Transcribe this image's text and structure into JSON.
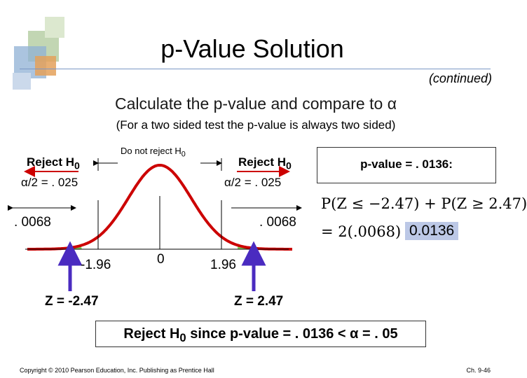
{
  "slide": {
    "title": "p-Value Solution",
    "continued": "(continued)",
    "subtitle_text": "Calculate the p-value and compare to ",
    "subtitle_alpha": "α",
    "note": "(For a two sided test the p-value is always two sided)"
  },
  "diagram": {
    "reject_label": "Reject H",
    "reject_sub": "0",
    "do_not_reject_label": "Do not reject H",
    "do_not_reject_sub": "0",
    "alpha_half_left": "α/2 = . 025",
    "alpha_half_right": "α/2 = . 025",
    "tail_left": ". 0068",
    "tail_right": ". 0068",
    "tick_neg": "-1.96",
    "tick_zero": "0",
    "tick_pos": "1.96",
    "z_left": "Z = -2.47",
    "z_right": "Z = 2.47"
  },
  "pvalue": {
    "label": "p-value = . 0136:",
    "eq1": "P(Z ≤ −2.47) + P(Z ≥ 2.47)",
    "eq2_pre": "= 2(.0068) =",
    "eq2_value": "0.0136"
  },
  "conclusion": {
    "text_a": "Reject H",
    "sub": "0",
    "text_b": " since p-value = . 0136 < α = . 05"
  },
  "footer": {
    "copyright": "Copyright © 2010 Pearson Education, Inc. Publishing as Prentice Hall",
    "page": "Ch. 9-46"
  },
  "colors": {
    "curve": "#cc0000",
    "tail_fill": "#66cc44",
    "arrow": "#4a2bc0",
    "highlight": "#bcc8e6"
  }
}
